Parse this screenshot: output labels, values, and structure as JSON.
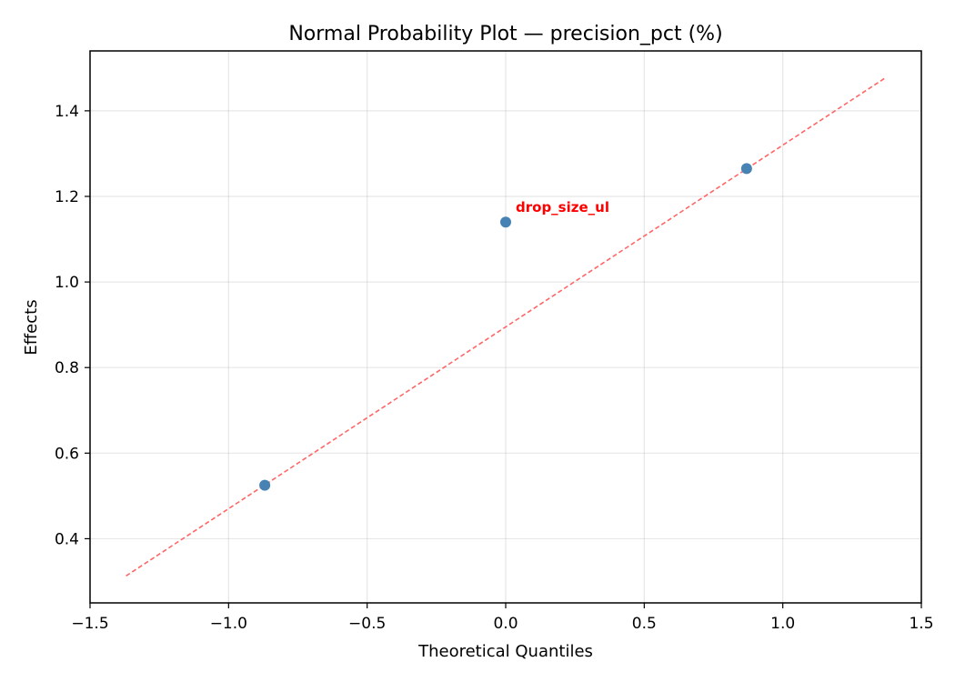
{
  "chart_data": {
    "type": "scatter",
    "title": "Normal Probability Plot — precision_pct (%)",
    "xlabel": "Theoretical Quantiles",
    "ylabel": "Effects",
    "xlim": [
      -1.5,
      1.5
    ],
    "ylim": [
      0.25,
      1.54
    ],
    "xticks": [
      -1.5,
      -1.0,
      -0.5,
      0.0,
      0.5,
      1.0,
      1.5
    ],
    "xtick_labels": [
      "−1.5",
      "−1.0",
      "−0.5",
      "0.0",
      "0.5",
      "1.0",
      "1.5"
    ],
    "yticks": [
      0.4,
      0.6,
      0.8,
      1.0,
      1.2,
      1.4
    ],
    "ytick_labels": [
      "0.4",
      "0.6",
      "0.8",
      "1.0",
      "1.2",
      "1.4"
    ],
    "grid": true,
    "points": [
      {
        "x": -0.8694,
        "y": 0.525,
        "label": ""
      },
      {
        "x": 0.0,
        "y": 1.14,
        "label": "drop_size_ul"
      },
      {
        "x": 0.8694,
        "y": 1.265,
        "label": ""
      }
    ],
    "reference_line": {
      "x": [
        -1.37,
        1.37
      ],
      "y": [
        0.313,
        1.477
      ],
      "style": "dashed"
    },
    "colors": {
      "points": "#4682b4",
      "reference_line": "#ff6666",
      "annotation": "#ff0000"
    }
  }
}
